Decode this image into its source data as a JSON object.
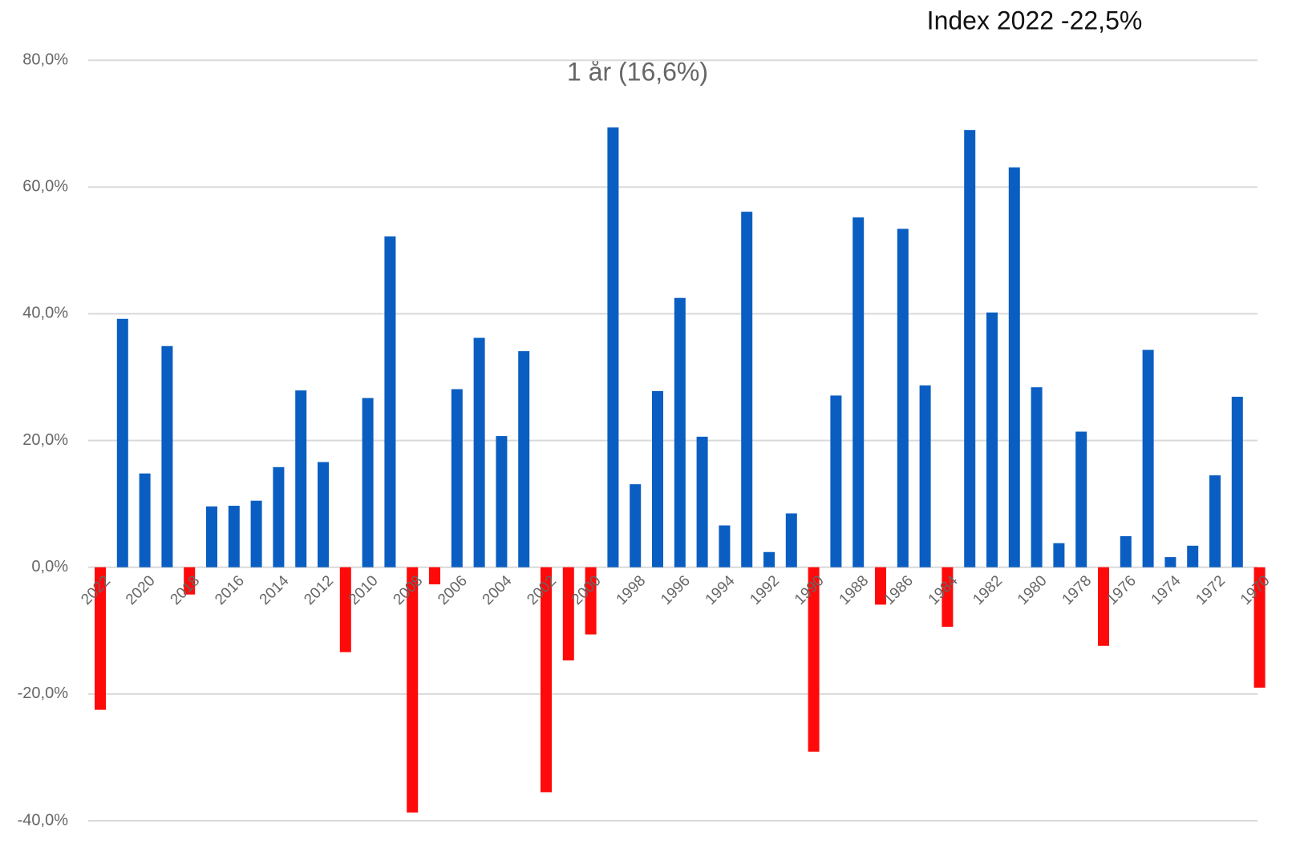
{
  "chart_data": {
    "type": "bar",
    "title": "Index  2022 -22,5%",
    "subtitle": "1 år (16,6%)",
    "categories": [
      "2022",
      null,
      "2020",
      null,
      "2018",
      null,
      "2016",
      null,
      "2014",
      null,
      "2012",
      null,
      "2010",
      null,
      "2008",
      null,
      "2006",
      null,
      "2004",
      null,
      "2002",
      null,
      "2000",
      null,
      "1998",
      null,
      "1996",
      null,
      "1994",
      null,
      "1992",
      null,
      "1990",
      null,
      "1988",
      null,
      "1986",
      null,
      "1984",
      null,
      "1982",
      null,
      "1980",
      null,
      "1978",
      null,
      "1976",
      null,
      "1974",
      null,
      "1972",
      null,
      "1970"
    ],
    "values": [
      -22.5,
      39.2,
      14.8,
      34.9,
      -4.3,
      9.6,
      9.7,
      10.5,
      15.8,
      27.9,
      16.6,
      -13.4,
      26.7,
      52.2,
      -38.7,
      -2.7,
      28.1,
      36.2,
      20.7,
      34.1,
      -35.5,
      -14.7,
      -10.6,
      69.4,
      13.1,
      27.8,
      42.5,
      20.6,
      6.6,
      56.1,
      2.4,
      8.5,
      -29.1,
      27.1,
      55.2,
      -5.9,
      53.4,
      28.7,
      -9.4,
      69.0,
      40.2,
      63.1,
      28.4,
      3.8,
      21.4,
      -12.4,
      4.9,
      34.3,
      1.6,
      3.4,
      14.5,
      26.9,
      -19.0
    ],
    "color": "#0a5ec2",
    "negative_color": "#ff0a0a",
    "ylim": [
      -40,
      80
    ],
    "yticks": [
      {
        "value": -40,
        "label": "-40,0%"
      },
      {
        "value": -20,
        "label": "-20,0%"
      },
      {
        "value": 0,
        "label": "0,0%"
      },
      {
        "value": 20,
        "label": "20,0%"
      },
      {
        "value": 40,
        "label": "40,0%"
      },
      {
        "value": 60,
        "label": "60,0%"
      },
      {
        "value": 80,
        "label": "80,0%"
      }
    ],
    "grid": true
  }
}
